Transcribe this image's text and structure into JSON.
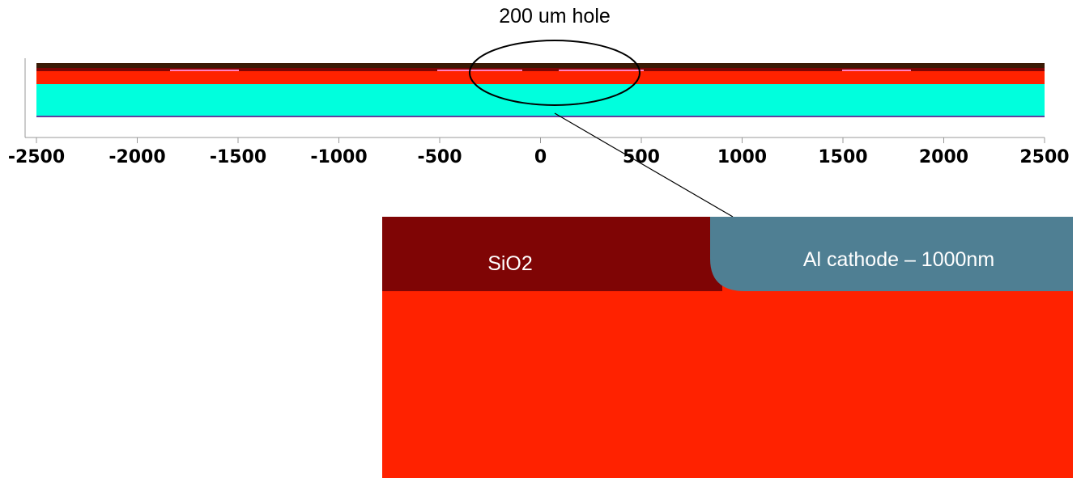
{
  "annotation": "200 um hole",
  "axis": {
    "xlim": [
      -2500,
      2500
    ],
    "xticks": [
      -2500,
      -2000,
      -1500,
      -1000,
      -500,
      0,
      500,
      1000,
      1500,
      2000,
      2500
    ]
  },
  "zoom": {
    "labels": [
      "SiO2",
      "Al cathode – 1000nm"
    ]
  }
}
